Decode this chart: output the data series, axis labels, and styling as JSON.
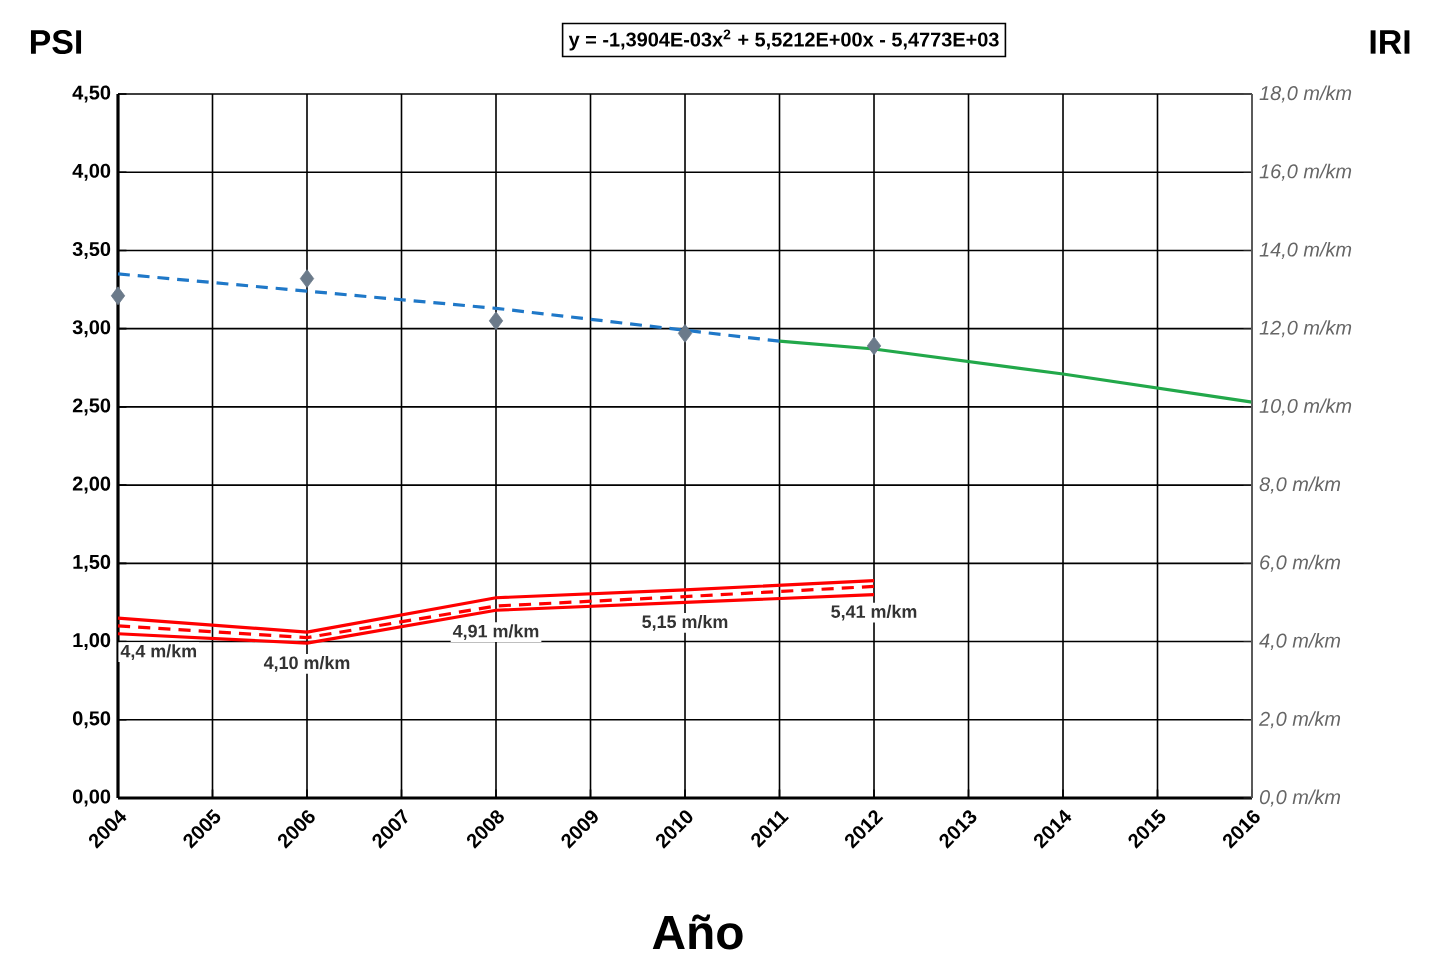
{
  "chart_data": {
    "type": "line",
    "xlabel": "Año",
    "ylabel": "PSI",
    "y2label": "IRI",
    "annotations": [
      "y = -1,3904E-03x$^{2}$ + 5,5212E+00x - 5,4773E+03"
    ],
    "xlim": [
      2004,
      2016
    ],
    "xticks": [
      2004,
      2005,
      2006,
      2007,
      2008,
      2009,
      2010,
      2011,
      2012,
      2013,
      2014,
      2015,
      2016
    ],
    "ylim": [
      0,
      4.5
    ],
    "yticks": [
      {
        "value": 0,
        "label": "0,00"
      },
      {
        "value": 0.5,
        "label": "0,50"
      },
      {
        "value": 1,
        "label": "1,00"
      },
      {
        "value": 1.5,
        "label": "1,50"
      },
      {
        "value": 2,
        "label": "2,00"
      },
      {
        "value": 2.5,
        "label": "2,50"
      },
      {
        "value": 3,
        "label": "3,00"
      },
      {
        "value": 3.5,
        "label": "3,50"
      },
      {
        "value": 4,
        "label": "4,00"
      },
      {
        "value": 4.5,
        "label": "4,50"
      }
    ],
    "y2lim": [
      0,
      18
    ],
    "y2ticks": [
      {
        "value": 0,
        "label": "0,0 m/km"
      },
      {
        "value": 2,
        "label": "2,0 m/km"
      },
      {
        "value": 4,
        "label": "4,0 m/km"
      },
      {
        "value": 6,
        "label": "6,0 m/km"
      },
      {
        "value": 8,
        "label": "8,0 m/km"
      },
      {
        "value": 10,
        "label": "10,0 m/km"
      },
      {
        "value": 12,
        "label": "12,0 m/km"
      },
      {
        "value": 14,
        "label": "14,0 m/km"
      },
      {
        "value": 16,
        "label": "16,0 m/km"
      },
      {
        "value": 18,
        "label": "18,0 m/km"
      }
    ],
    "grid": true,
    "series": [
      {
        "type": "scatter",
        "marker": "diamond",
        "color": "#6b7a8a",
        "x": [
          2004,
          2006,
          2008,
          2010,
          2012
        ],
        "values": [
          3.21,
          3.32,
          3.05,
          2.97,
          2.89
        ]
      },
      {
        "line_style": "dashed",
        "color": "#1f78c8",
        "x": [
          2004,
          2006,
          2008,
          2010,
          2011
        ],
        "values": [
          3.35,
          3.24,
          3.13,
          2.99,
          2.92
        ]
      },
      {
        "line_style": "solid",
        "color": "#22a84a",
        "x": [
          2011,
          2012,
          2014,
          2016
        ],
        "values": [
          2.92,
          2.87,
          2.71,
          2.53
        ]
      },
      {
        "type": "line",
        "axis": "y2",
        "line_style": "solid",
        "color": "#ff0000",
        "x": [
          2004,
          2006,
          2008,
          2010,
          2012
        ],
        "values": [
          4.6,
          4.24,
          5.12,
          5.32,
          5.56
        ]
      },
      {
        "type": "line",
        "axis": "y2",
        "line_style": "solid",
        "color": "#ff0000",
        "x": [
          2004,
          2006,
          2008,
          2010,
          2012
        ],
        "values": [
          4.2,
          3.96,
          4.8,
          5.0,
          5.2
        ]
      },
      {
        "type": "line",
        "axis": "y2",
        "line_style": "dashed",
        "color": "#ff0000",
        "x": [
          2004,
          2006,
          2008,
          2010,
          2012
        ],
        "values": [
          4.4,
          4.1,
          4.91,
          5.15,
          5.41
        ],
        "value_labels": [
          "4,4 m/km",
          "4,10 m/km",
          "4,91 m/km",
          "5,15 m/km",
          "5,41 m/km"
        ]
      }
    ]
  }
}
